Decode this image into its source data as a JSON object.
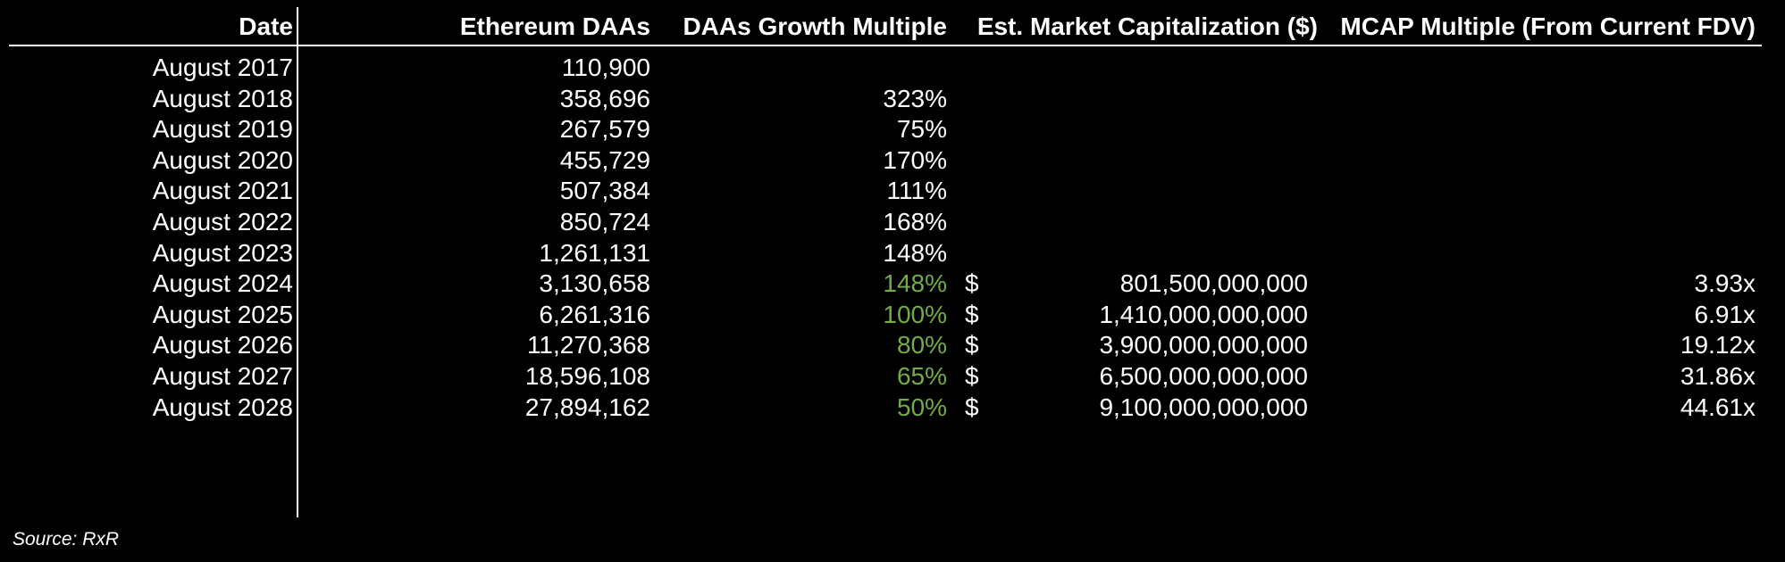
{
  "headers": {
    "date": "Date",
    "daas": "Ethereum DAAs",
    "growth": "DAAs Growth Multiple",
    "mcap": "Est. Market Capitalization ($)",
    "multiple": "MCAP Multiple (From Current FDV)"
  },
  "highlight_color": "#70ad47",
  "rows": [
    {
      "date": "August 2017",
      "daas": "110,900",
      "growth": "",
      "dollar": "",
      "mcap": "",
      "multiple": ""
    },
    {
      "date": "August 2018",
      "daas": "358,696",
      "growth": "323%",
      "dollar": "",
      "mcap": "",
      "multiple": ""
    },
    {
      "date": "August 2019",
      "daas": "267,579",
      "growth": "75%",
      "dollar": "",
      "mcap": "",
      "multiple": ""
    },
    {
      "date": "August 2020",
      "daas": "455,729",
      "growth": "170%",
      "dollar": "",
      "mcap": "",
      "multiple": ""
    },
    {
      "date": "August 2021",
      "daas": "507,384",
      "growth": "111%",
      "dollar": "",
      "mcap": "",
      "multiple": ""
    },
    {
      "date": "August 2022",
      "daas": "850,724",
      "growth": "168%",
      "dollar": "",
      "mcap": "",
      "multiple": ""
    },
    {
      "date": "August 2023",
      "daas": "1,261,131",
      "growth": "148%",
      "dollar": "",
      "mcap": "",
      "multiple": ""
    },
    {
      "date": "August 2024",
      "daas": "3,130,658",
      "growth": "148%",
      "dollar": "$",
      "mcap": "801,500,000,000",
      "multiple": "3.93x"
    },
    {
      "date": "August 2025",
      "daas": "6,261,316",
      "growth": "100%",
      "dollar": "$",
      "mcap": "1,410,000,000,000",
      "multiple": "6.91x"
    },
    {
      "date": "August 2026",
      "daas": "11,270,368",
      "growth": "80%",
      "dollar": "$",
      "mcap": "3,900,000,000,000",
      "multiple": "19.12x"
    },
    {
      "date": "August 2027",
      "daas": "18,596,108",
      "growth": "65%",
      "dollar": "$",
      "mcap": "6,500,000,000,000",
      "multiple": "31.86x"
    },
    {
      "date": "August 2028",
      "daas": "27,894,162",
      "growth": "50%",
      "dollar": "$",
      "mcap": "9,100,000,000,000",
      "multiple": "44.61x"
    }
  ],
  "source": "Source: RxR"
}
